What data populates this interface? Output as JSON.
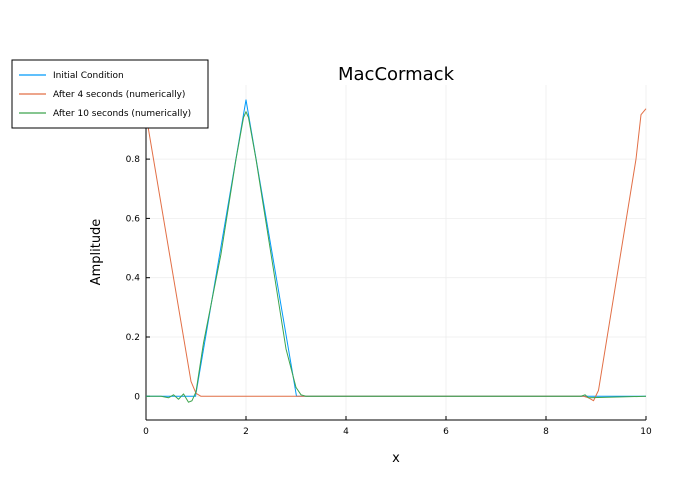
{
  "chart_data": {
    "type": "line",
    "title": "MacCormack",
    "xlabel": "x",
    "ylabel": "Amplitude",
    "xlim": [
      0,
      10
    ],
    "ylim": [
      -0.08,
      1.05
    ],
    "xticks": [
      0,
      2,
      4,
      6,
      8,
      10
    ],
    "yticks": [
      0,
      0.2,
      0.4,
      0.6,
      0.8
    ],
    "grid": true,
    "legend": "top-left",
    "series": [
      {
        "name": "Initial Condition",
        "color": "#009AFA",
        "x": [
          0,
          0.99,
          2.0,
          3.01,
          10
        ],
        "y": [
          0,
          0,
          1.0,
          0,
          0
        ]
      },
      {
        "name": "After 4 seconds (numerically)",
        "color": "#E26F46",
        "x": [
          0,
          0.9,
          1.0,
          1.1,
          1.2,
          8.75,
          8.85,
          8.95,
          9.05,
          9.8,
          9.9,
          10
        ],
        "y": [
          0.95,
          0.05,
          0.01,
          0.0,
          0.0,
          0.0,
          -0.005,
          -0.015,
          0.02,
          0.8,
          0.95,
          0.97
        ]
      },
      {
        "name": "After 10 seconds (numerically)",
        "color": "#3DA44D",
        "x": [
          0,
          0.3,
          0.45,
          0.55,
          0.65,
          0.75,
          0.85,
          0.92,
          1.0,
          1.15,
          1.5,
          1.8,
          1.95,
          2.0,
          2.05,
          2.2,
          2.5,
          2.8,
          3.0,
          3.1,
          3.2,
          8.7,
          8.78,
          8.85,
          10
        ],
        "y": [
          0,
          0,
          -0.005,
          0.005,
          -0.01,
          0.008,
          -0.02,
          -0.015,
          0.015,
          0.18,
          0.48,
          0.8,
          0.94,
          0.96,
          0.94,
          0.8,
          0.48,
          0.16,
          0.03,
          0.005,
          0,
          0,
          0.005,
          -0.005,
          0
        ]
      }
    ]
  }
}
